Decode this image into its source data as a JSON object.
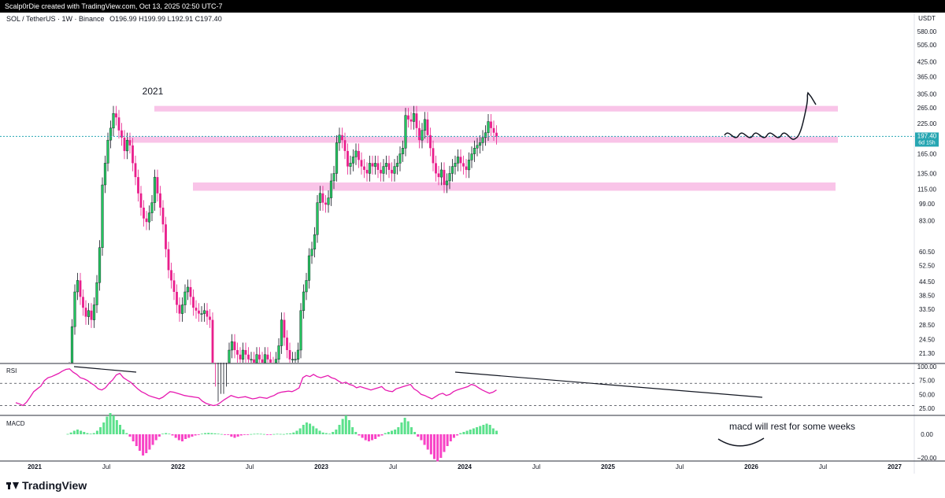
{
  "header": {
    "caption": "Scalp0rDie created with TradingView.com, Oct 13, 2025 02:50 UTC-7"
  },
  "chart_data": {
    "type": "candlestick",
    "legend_symbol": "SOL / TetherUS · 1W · Binance",
    "ohlc_text": "O196.99  H199.99  L192.91  C197.40",
    "y_currency": "USDT",
    "y_scale": "log",
    "y_ticks": [
      580,
      505,
      425,
      365,
      305,
      265,
      225,
      165,
      135,
      115,
      99,
      83,
      60.5,
      52.5,
      44.5,
      38.5,
      33.5,
      28.5,
      24.5,
      21.3
    ],
    "y_tick_labels": [
      "580.00",
      "505.00",
      "425.00",
      "365.00",
      "305.00",
      "265.00",
      "225.00",
      "165.00",
      "135.00",
      "115.00",
      "99.00",
      "83.00",
      "60.50",
      "52.50",
      "44.50",
      "38.50",
      "33.50",
      "28.50",
      "24.50",
      "21.30"
    ],
    "x_tick_labels": [
      "2021",
      "Jul",
      "2022",
      "Jul",
      "2023",
      "Jul",
      "2024",
      "Jul",
      "2025",
      "Jul",
      "2026",
      "Jul",
      "2027"
    ],
    "last_price_label": "197.40",
    "countdown_label": "6d 15h",
    "annotation_year": "2021",
    "zones": [
      {
        "low": 255,
        "high": 270
      },
      {
        "low": 185,
        "high": 197
      },
      {
        "low": 113,
        "high": 123
      }
    ],
    "weekly_closes": [
      18,
      28,
      40,
      45,
      38,
      34,
      31,
      33,
      30,
      35,
      44,
      63,
      120,
      150,
      190,
      215,
      250,
      240,
      210,
      195,
      170,
      190,
      180,
      150,
      130,
      110,
      95,
      85,
      82,
      90,
      100,
      130,
      110,
      95,
      80,
      62,
      50,
      45,
      40,
      35,
      32,
      35,
      40,
      42,
      38,
      34,
      33,
      32,
      32,
      33,
      31,
      30,
      14,
      11,
      12,
      13,
      13,
      14,
      22,
      24,
      22,
      21,
      20,
      22,
      21,
      20,
      20,
      19,
      21,
      20,
      19,
      21,
      20,
      19,
      18,
      20,
      23,
      30,
      25,
      22,
      20,
      20,
      20,
      22,
      33,
      40,
      45,
      58,
      62,
      72,
      100,
      110,
      100,
      98,
      105,
      125,
      135,
      185,
      200,
      190,
      170,
      145,
      150,
      160,
      170,
      155,
      145,
      140,
      135,
      150,
      145,
      150,
      140,
      135,
      145,
      150,
      140,
      135,
      145,
      150,
      165,
      175,
      245,
      235,
      230,
      250,
      215,
      190,
      210,
      235,
      200,
      175,
      150,
      135,
      130,
      140,
      120,
      125,
      135,
      145,
      150,
      160,
      150,
      145,
      140,
      155,
      165,
      175,
      180,
      185,
      195,
      205,
      230,
      215,
      205,
      197.4
    ],
    "rsi": {
      "label": "RSI",
      "ticks": [
        100,
        75,
        50,
        25
      ],
      "tick_labels": [
        "100.00",
        "75.00",
        "50.00",
        "25.00"
      ],
      "values": [
        35,
        33,
        30,
        36,
        45,
        55,
        60,
        65,
        75,
        80,
        82,
        85,
        88,
        92,
        95,
        96,
        90,
        86,
        80,
        78,
        75,
        70,
        66,
        60,
        58,
        62,
        70,
        76,
        85,
        88,
        80,
        76,
        72,
        66,
        60,
        55,
        52,
        48,
        46,
        44,
        42,
        45,
        50,
        55,
        54,
        52,
        50,
        48,
        47,
        46,
        45,
        44,
        38,
        34,
        32,
        30,
        31,
        35,
        40,
        44,
        48,
        46,
        44,
        45,
        46,
        44,
        42,
        43,
        45,
        44,
        43,
        46,
        48,
        52,
        54,
        55,
        56,
        55,
        58,
        62,
        80,
        84,
        82,
        86,
        82,
        80,
        82,
        84,
        80,
        78,
        74,
        70,
        72,
        68,
        66,
        62,
        64,
        62,
        60,
        58,
        60,
        62,
        64,
        58,
        56,
        55,
        60,
        62,
        64,
        66,
        68,
        60,
        56,
        50,
        48,
        45,
        42,
        46,
        50,
        52,
        48,
        50,
        55,
        58,
        60,
        62,
        64,
        68,
        66,
        62,
        58,
        55,
        52,
        54,
        58
      ]
    },
    "macd": {
      "label": "MACD",
      "ticks": [
        0,
        -20
      ],
      "tick_labels": [
        "0.00",
        "−20.00"
      ],
      "hist": [
        0.3,
        1.5,
        3,
        4,
        3,
        2,
        1,
        0.5,
        1,
        3,
        6,
        10,
        15,
        18,
        16,
        12,
        8,
        4,
        1,
        -2,
        -6,
        -10,
        -14,
        -18,
        -16,
        -13,
        -9,
        -5,
        -2,
        0.5,
        1,
        0.5,
        -1,
        -3,
        -5,
        -6,
        -4,
        -3,
        -2,
        -1,
        -0.5,
        0.5,
        1,
        1.2,
        1,
        0.8,
        0.5,
        0.2,
        -0.2,
        -0.5,
        -2,
        -3,
        -2,
        -1,
        -0.5,
        -0.4,
        0.2,
        0.4,
        0.5,
        0.4,
        0.2,
        -0.2,
        -0.3,
        0.2,
        0.4,
        0.3,
        0.2,
        0.6,
        0.8,
        1.5,
        3,
        5,
        8,
        10,
        9,
        7,
        5,
        3,
        1.5,
        1,
        0.5,
        2,
        4,
        8,
        13,
        16,
        12,
        6,
        2,
        -1,
        -3,
        -5,
        -6,
        -5,
        -4,
        -2,
        -1,
        1,
        2,
        3,
        4,
        6,
        10,
        14,
        11,
        6,
        2,
        -2,
        -5,
        -9,
        -13,
        -17,
        -21,
        -23,
        -20,
        -15,
        -10,
        -6,
        -3,
        -1,
        1,
        2,
        3,
        4,
        5,
        6,
        7,
        8,
        9,
        8,
        5,
        3
      ]
    },
    "text_annotations": [
      "macd will rest for some weeks"
    ]
  },
  "footer": {
    "brand": "TradingView"
  },
  "colors": {
    "up": "#26a69a",
    "up_bright": "#22c55e",
    "down": "#e91e8c",
    "zone": "#f9c4e8",
    "rsi_line": "#e619b0",
    "last_price_bg": "#26a6b2",
    "hist_pos": "#4ade80",
    "hist_neg": "#f72fc0"
  }
}
